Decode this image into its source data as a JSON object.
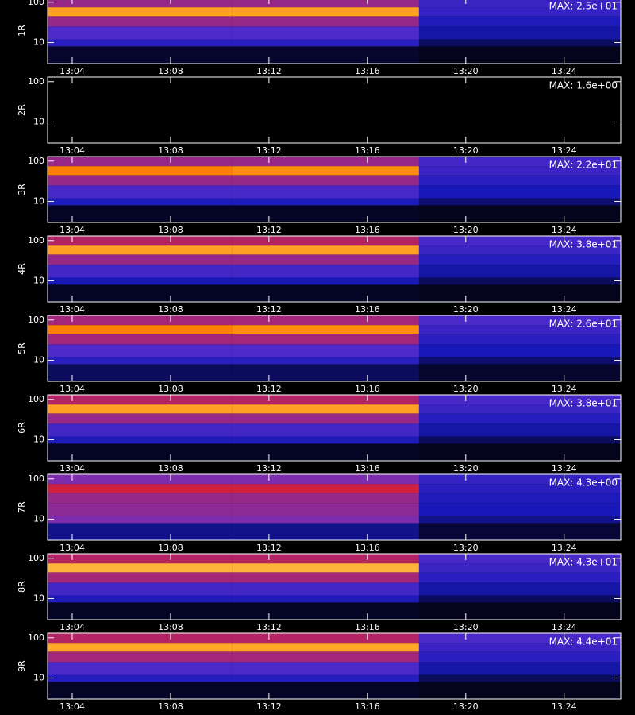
{
  "chart_data": [
    {
      "type": "heatmap",
      "ylabel": "1R",
      "annotation": "MAX: 2.5e+01",
      "x_edges": [
        783,
        790.5,
        798.1,
        806.3
      ],
      "y_edges": [
        3,
        8,
        12,
        25,
        45,
        75,
        130
      ],
      "z": [
        [
          0.05,
          0.05,
          0.03
        ],
        [
          0.25,
          0.25,
          0.1
        ],
        [
          0.35,
          0.35,
          0.18
        ],
        [
          0.5,
          0.5,
          0.22
        ],
        [
          0.85,
          0.85,
          0.28
        ],
        [
          0.5,
          0.5,
          0.3
        ]
      ],
      "xlim": [
        783,
        806.3
      ],
      "ylim": [
        3,
        130
      ],
      "log_y": true,
      "xticks": [
        {
          "value": 784,
          "label": "13:04"
        },
        {
          "value": 788,
          "label": "13:08"
        },
        {
          "value": 792,
          "label": "13:12"
        },
        {
          "value": 796,
          "label": "13:16"
        },
        {
          "value": 800,
          "label": "13:20"
        },
        {
          "value": 804,
          "label": "13:24"
        }
      ],
      "yticks": [
        10,
        100
      ],
      "colors": [
        "#000000",
        "#1818b8",
        "#6030d0",
        "#d02040",
        "#ff8000",
        "#ffff90"
      ]
    },
    {
      "type": "heatmap",
      "ylabel": "2R",
      "annotation": "MAX: 1.6e+00",
      "x_edges": [
        783,
        790.5,
        798.1,
        806.3
      ],
      "y_edges": [
        3,
        8,
        12,
        25,
        45,
        75,
        130
      ],
      "z": [
        [
          0,
          0,
          0
        ],
        [
          0,
          0,
          0
        ],
        [
          0,
          0,
          0
        ],
        [
          0,
          0,
          0
        ],
        [
          0,
          0,
          0
        ],
        [
          0,
          0,
          0
        ]
      ],
      "xlim": [
        783,
        806.3
      ],
      "ylim": [
        3,
        130
      ],
      "log_y": true,
      "xticks": [
        {
          "value": 784,
          "label": "13:04"
        },
        {
          "value": 788,
          "label": "13:08"
        },
        {
          "value": 792,
          "label": "13:12"
        },
        {
          "value": 796,
          "label": "13:16"
        },
        {
          "value": 800,
          "label": "13:20"
        },
        {
          "value": 804,
          "label": "13:24"
        }
      ],
      "yticks": [
        10,
        100
      ],
      "colors": [
        "#000000",
        "#1818b8",
        "#6030d0",
        "#d02040",
        "#ff8000",
        "#ffff90"
      ]
    },
    {
      "type": "heatmap",
      "ylabel": "3R",
      "annotation": "MAX: 2.2e+01",
      "x_edges": [
        783,
        790.5,
        798.1,
        806.3
      ],
      "y_edges": [
        3,
        8,
        12,
        25,
        45,
        75,
        130
      ],
      "z": [
        [
          0.04,
          0.04,
          0.03
        ],
        [
          0.22,
          0.22,
          0.12
        ],
        [
          0.33,
          0.33,
          0.2
        ],
        [
          0.5,
          0.5,
          0.25
        ],
        [
          0.8,
          0.82,
          0.3
        ],
        [
          0.5,
          0.5,
          0.32
        ]
      ],
      "xlim": [
        783,
        806.3
      ],
      "ylim": [
        3,
        130
      ],
      "log_y": true,
      "xticks": [
        {
          "value": 784,
          "label": "13:04"
        },
        {
          "value": 788,
          "label": "13:08"
        },
        {
          "value": 792,
          "label": "13:12"
        },
        {
          "value": 796,
          "label": "13:16"
        },
        {
          "value": 800,
          "label": "13:20"
        },
        {
          "value": 804,
          "label": "13:24"
        }
      ],
      "yticks": [
        10,
        100
      ],
      "colors": [
        "#000000",
        "#1818b8",
        "#6030d0",
        "#d02040",
        "#ff8000",
        "#ffff90"
      ]
    },
    {
      "type": "heatmap",
      "ylabel": "4R",
      "annotation": "MAX: 3.8e+01",
      "x_edges": [
        783,
        790.5,
        798.1,
        806.3
      ],
      "y_edges": [
        3,
        8,
        12,
        25,
        45,
        75,
        130
      ],
      "z": [
        [
          0.04,
          0.04,
          0.03
        ],
        [
          0.2,
          0.2,
          0.1
        ],
        [
          0.32,
          0.32,
          0.18
        ],
        [
          0.5,
          0.5,
          0.24
        ],
        [
          0.85,
          0.85,
          0.3
        ],
        [
          0.55,
          0.55,
          0.33
        ]
      ],
      "xlim": [
        783,
        806.3
      ],
      "ylim": [
        3,
        130
      ],
      "log_y": true,
      "xticks": [
        {
          "value": 784,
          "label": "13:04"
        },
        {
          "value": 788,
          "label": "13:08"
        },
        {
          "value": 792,
          "label": "13:12"
        },
        {
          "value": 796,
          "label": "13:16"
        },
        {
          "value": 800,
          "label": "13:20"
        },
        {
          "value": 804,
          "label": "13:24"
        }
      ],
      "yticks": [
        10,
        100
      ],
      "colors": [
        "#000000",
        "#1818b8",
        "#6030d0",
        "#d02040",
        "#ff8000",
        "#ffff90"
      ]
    },
    {
      "type": "heatmap",
      "ylabel": "5R",
      "annotation": "MAX: 2.6e+01",
      "x_edges": [
        783,
        790.5,
        798.1,
        806.3
      ],
      "y_edges": [
        3,
        8,
        12,
        25,
        45,
        75,
        130
      ],
      "z": [
        [
          0.1,
          0.1,
          0.05
        ],
        [
          0.25,
          0.25,
          0.12
        ],
        [
          0.35,
          0.35,
          0.2
        ],
        [
          0.52,
          0.52,
          0.25
        ],
        [
          0.8,
          0.82,
          0.3
        ],
        [
          0.52,
          0.52,
          0.34
        ]
      ],
      "xlim": [
        783,
        806.3
      ],
      "ylim": [
        3,
        130
      ],
      "log_y": true,
      "xticks": [
        {
          "value": 784,
          "label": "13:04"
        },
        {
          "value": 788,
          "label": "13:08"
        },
        {
          "value": 792,
          "label": "13:12"
        },
        {
          "value": 796,
          "label": "13:16"
        },
        {
          "value": 800,
          "label": "13:20"
        },
        {
          "value": 804,
          "label": "13:24"
        }
      ],
      "yticks": [
        10,
        100
      ],
      "colors": [
        "#000000",
        "#1818b8",
        "#6030d0",
        "#d02040",
        "#ff8000",
        "#ffff90"
      ]
    },
    {
      "type": "heatmap",
      "ylabel": "6R",
      "annotation": "MAX: 3.8e+01",
      "x_edges": [
        783,
        790.5,
        798.1,
        806.3
      ],
      "y_edges": [
        3,
        8,
        12,
        25,
        45,
        75,
        130
      ],
      "z": [
        [
          0.04,
          0.04,
          0.03
        ],
        [
          0.22,
          0.22,
          0.1
        ],
        [
          0.32,
          0.32,
          0.18
        ],
        [
          0.5,
          0.5,
          0.24
        ],
        [
          0.85,
          0.85,
          0.3
        ],
        [
          0.55,
          0.55,
          0.33
        ]
      ],
      "xlim": [
        783,
        806.3
      ],
      "ylim": [
        3,
        130
      ],
      "log_y": true,
      "xticks": [
        {
          "value": 784,
          "label": "13:04"
        },
        {
          "value": 788,
          "label": "13:08"
        },
        {
          "value": 792,
          "label": "13:12"
        },
        {
          "value": 796,
          "label": "13:16"
        },
        {
          "value": 800,
          "label": "13:20"
        },
        {
          "value": 804,
          "label": "13:24"
        }
      ],
      "yticks": [
        10,
        100
      ],
      "colors": [
        "#000000",
        "#1818b8",
        "#6030d0",
        "#d02040",
        "#ff8000",
        "#ffff90"
      ]
    },
    {
      "type": "heatmap",
      "ylabel": "7R",
      "annotation": "MAX: 4.3e+00",
      "x_edges": [
        783,
        790.5,
        798.1,
        806.3
      ],
      "y_edges": [
        3,
        8,
        12,
        25,
        45,
        75,
        130
      ],
      "z": [
        [
          0.15,
          0.15,
          0.06
        ],
        [
          0.45,
          0.45,
          0.15
        ],
        [
          0.48,
          0.48,
          0.2
        ],
        [
          0.5,
          0.5,
          0.22
        ],
        [
          0.6,
          0.6,
          0.25
        ],
        [
          0.45,
          0.45,
          0.28
        ]
      ],
      "xlim": [
        783,
        806.3
      ],
      "ylim": [
        3,
        130
      ],
      "log_y": true,
      "xticks": [
        {
          "value": 784,
          "label": "13:04"
        },
        {
          "value": 788,
          "label": "13:08"
        },
        {
          "value": 792,
          "label": "13:12"
        },
        {
          "value": 796,
          "label": "13:16"
        },
        {
          "value": 800,
          "label": "13:20"
        },
        {
          "value": 804,
          "label": "13:24"
        }
      ],
      "yticks": [
        10,
        100
      ],
      "colors": [
        "#000000",
        "#1818b8",
        "#6030d0",
        "#d02040",
        "#ff8000",
        "#ffff90"
      ]
    },
    {
      "type": "heatmap",
      "ylabel": "8R",
      "annotation": "MAX: 4.3e+01",
      "x_edges": [
        783,
        790.5,
        798.1,
        806.3
      ],
      "y_edges": [
        3,
        8,
        12,
        25,
        45,
        75,
        130
      ],
      "z": [
        [
          0.04,
          0.04,
          0.03
        ],
        [
          0.22,
          0.22,
          0.1
        ],
        [
          0.32,
          0.32,
          0.18
        ],
        [
          0.52,
          0.52,
          0.25
        ],
        [
          0.88,
          0.88,
          0.3
        ],
        [
          0.55,
          0.55,
          0.34
        ]
      ],
      "xlim": [
        783,
        806.3
      ],
      "ylim": [
        3,
        130
      ],
      "log_y": true,
      "xticks": [
        {
          "value": 784,
          "label": "13:04"
        },
        {
          "value": 788,
          "label": "13:08"
        },
        {
          "value": 792,
          "label": "13:12"
        },
        {
          "value": 796,
          "label": "13:16"
        },
        {
          "value": 800,
          "label": "13:20"
        },
        {
          "value": 804,
          "label": "13:24"
        }
      ],
      "yticks": [
        10,
        100
      ],
      "colors": [
        "#000000",
        "#1818b8",
        "#6030d0",
        "#d02040",
        "#ff8000",
        "#ffff90"
      ]
    },
    {
      "type": "heatmap",
      "ylabel": "9R",
      "annotation": "MAX: 4.4e+01",
      "x_edges": [
        783,
        790.5,
        798.1,
        806.3
      ],
      "y_edges": [
        3,
        8,
        12,
        25,
        45,
        75,
        130
      ],
      "z": [
        [
          0.04,
          0.04,
          0.03
        ],
        [
          0.24,
          0.24,
          0.1
        ],
        [
          0.34,
          0.34,
          0.18
        ],
        [
          0.52,
          0.52,
          0.25
        ],
        [
          0.86,
          0.86,
          0.3
        ],
        [
          0.55,
          0.55,
          0.34
        ]
      ],
      "xlim": [
        783,
        806.3
      ],
      "ylim": [
        3,
        130
      ],
      "log_y": true,
      "xticks": [
        {
          "value": 784,
          "label": "13:04"
        },
        {
          "value": 788,
          "label": "13:08"
        },
        {
          "value": 792,
          "label": "13:12"
        },
        {
          "value": 796,
          "label": "13:16"
        },
        {
          "value": 800,
          "label": "13:20"
        },
        {
          "value": 804,
          "label": "13:24"
        }
      ],
      "yticks": [
        10,
        100
      ],
      "colors": [
        "#000000",
        "#1818b8",
        "#6030d0",
        "#d02040",
        "#ff8000",
        "#ffff90"
      ]
    }
  ]
}
